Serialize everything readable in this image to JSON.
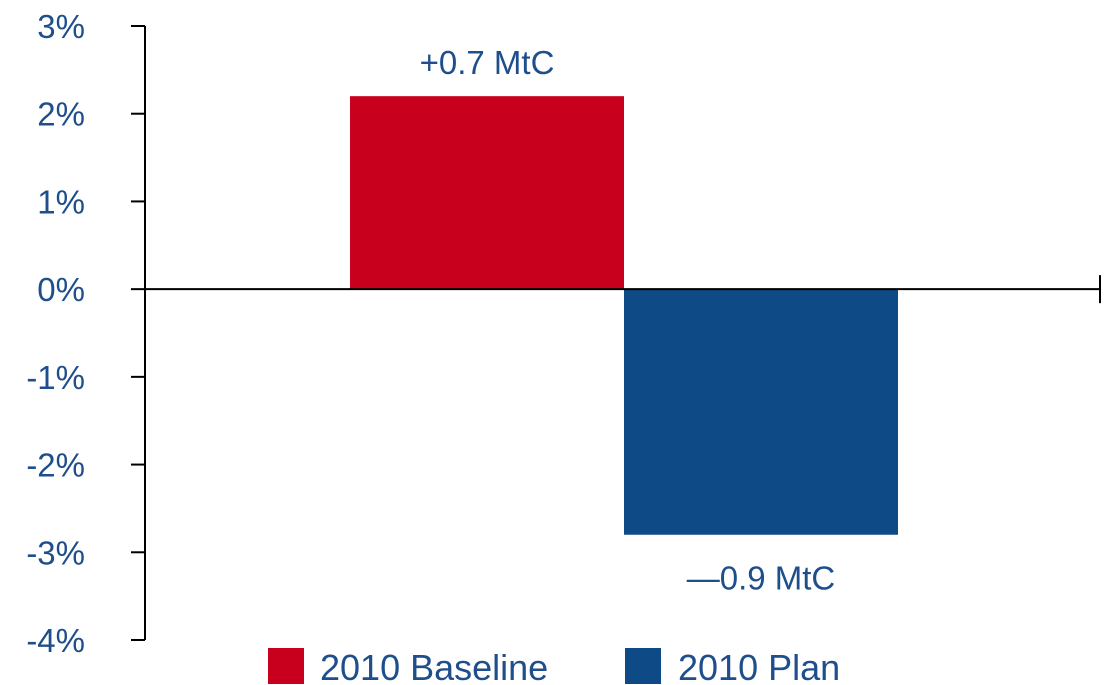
{
  "chart_data": {
    "type": "bar",
    "categories": [
      "2010 Baseline",
      "2010 Plan"
    ],
    "values": [
      2.2,
      -2.8
    ],
    "ylim": [
      -4,
      3
    ],
    "yticks": [
      3,
      2,
      1,
      0,
      -1,
      -2,
      -3,
      -4
    ],
    "ytick_labels": [
      "3%",
      "2%",
      "1%",
      "0%",
      "-1%",
      "-2%",
      "-3%",
      "-4%"
    ],
    "data_labels": [
      "+0.7 MtC",
      "—0.9 MtC"
    ],
    "colors": [
      "#c8001e",
      "#0d4a86"
    ],
    "legend": [
      "2010 Baseline",
      "2010 Plan"
    ],
    "legend_position": "bottom",
    "grid": false,
    "title": "",
    "xlabel": "",
    "ylabel": ""
  }
}
